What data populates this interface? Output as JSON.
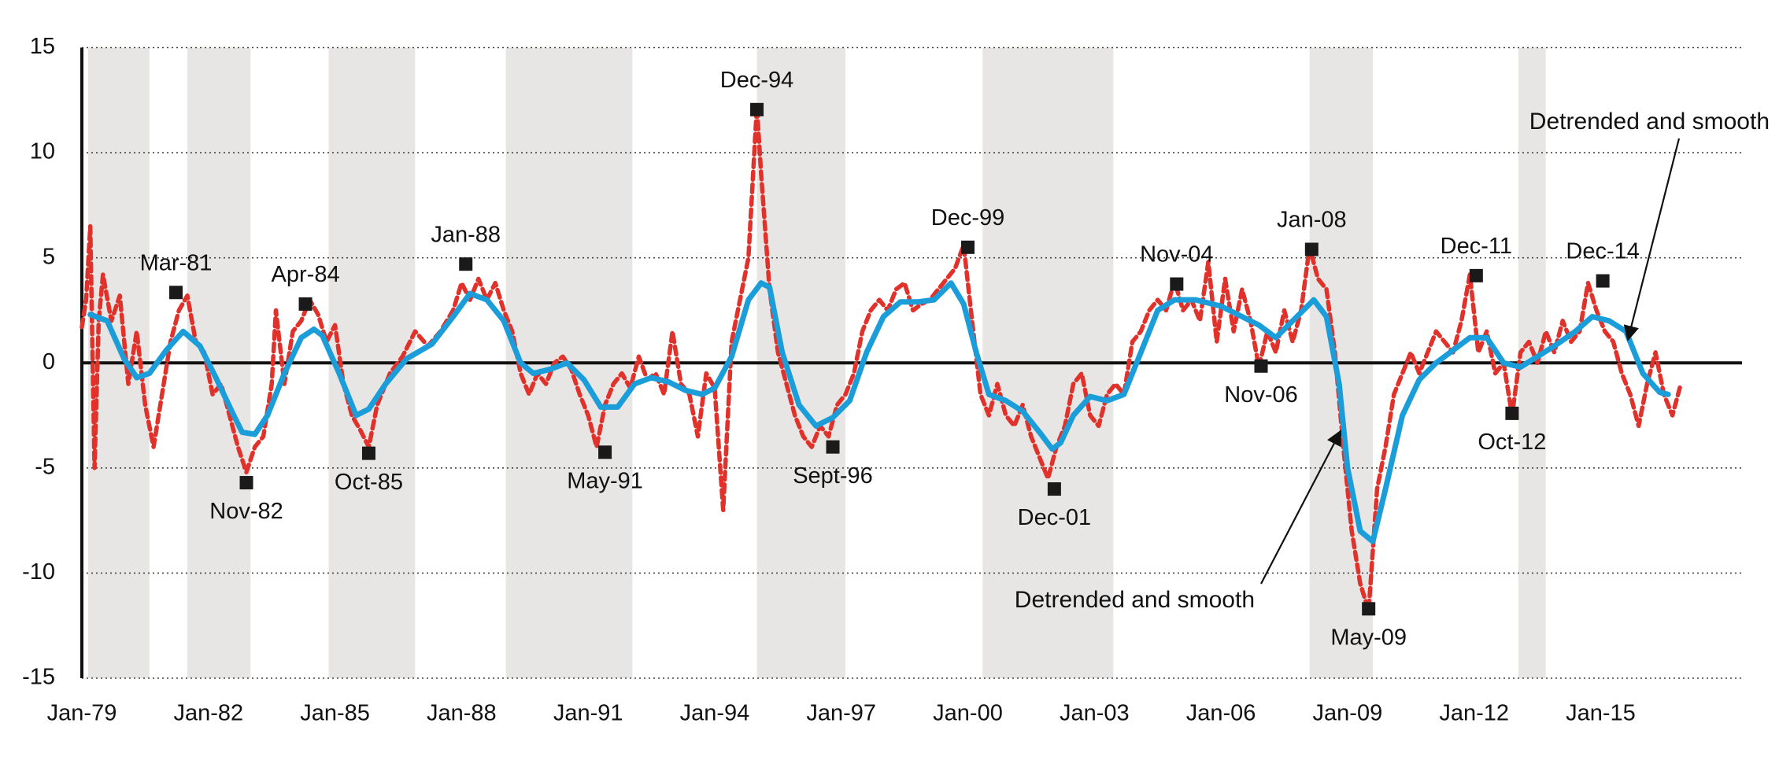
{
  "chart_data": {
    "type": "line",
    "xlim": [
      1979,
      2018.35
    ],
    "ylim": [
      -15,
      15
    ],
    "yticks": [
      15,
      10,
      5,
      0,
      -5,
      -10,
      -15
    ],
    "xticks": [
      {
        "value": 1979,
        "label": "Jan-79"
      },
      {
        "value": 1982,
        "label": "Jan-82"
      },
      {
        "value": 1985,
        "label": "Jan-85"
      },
      {
        "value": 1988,
        "label": "Jan-88"
      },
      {
        "value": 1991,
        "label": "Jan-91"
      },
      {
        "value": 1994,
        "label": "Jan-94"
      },
      {
        "value": 1997,
        "label": "Jan-97"
      },
      {
        "value": 2000,
        "label": "Jan-00"
      },
      {
        "value": 2003,
        "label": "Jan-03"
      },
      {
        "value": 2006,
        "label": "Jan-06"
      },
      {
        "value": 2009,
        "label": "Jan-09"
      },
      {
        "value": 2012,
        "label": "Jan-12"
      },
      {
        "value": 2015,
        "label": "Jan-15"
      }
    ],
    "grid": true,
    "shade_color": "#e8e6e4",
    "shaded_periods": [
      [
        1979.15,
        1980.6
      ],
      [
        1981.5,
        1983.0
      ],
      [
        1984.85,
        1986.9
      ],
      [
        1989.05,
        1992.05
      ],
      [
        1995.0,
        1997.1
      ],
      [
        2000.35,
        2003.45
      ],
      [
        2008.1,
        2009.6
      ],
      [
        2013.05,
        2013.7
      ]
    ],
    "series": [
      {
        "color": "#e0312b",
        "style": "dashed",
        "x": [
          1979.0,
          1979.1,
          1979.2,
          1979.3,
          1979.4,
          1979.5,
          1979.7,
          1979.9,
          1980.1,
          1980.3,
          1980.5,
          1980.7,
          1980.9,
          1981.1,
          1981.3,
          1981.5,
          1981.7,
          1981.9,
          1982.1,
          1982.3,
          1982.5,
          1982.7,
          1982.9,
          1983.1,
          1983.3,
          1983.5,
          1983.6,
          1983.8,
          1984.0,
          1984.2,
          1984.4,
          1984.6,
          1984.8,
          1985.0,
          1985.2,
          1985.4,
          1985.6,
          1985.8,
          1986.0,
          1986.3,
          1986.6,
          1986.9,
          1987.2,
          1987.5,
          1987.8,
          1988.0,
          1988.2,
          1988.4,
          1988.6,
          1988.8,
          1989.0,
          1989.2,
          1989.4,
          1989.6,
          1989.8,
          1990.0,
          1990.2,
          1990.4,
          1990.6,
          1990.8,
          1991.0,
          1991.2,
          1991.4,
          1991.6,
          1991.8,
          1992.0,
          1992.2,
          1992.4,
          1992.6,
          1992.8,
          1993.0,
          1993.2,
          1993.4,
          1993.6,
          1993.8,
          1994.0,
          1994.2,
          1994.4,
          1994.6,
          1994.8,
          1995.0,
          1995.1,
          1995.3,
          1995.5,
          1995.7,
          1995.9,
          1996.1,
          1996.3,
          1996.5,
          1996.7,
          1996.9,
          1997.1,
          1997.3,
          1997.5,
          1997.7,
          1997.9,
          1998.1,
          1998.3,
          1998.5,
          1998.7,
          1998.9,
          1999.1,
          1999.3,
          1999.5,
          1999.7,
          1999.9,
          2000.1,
          2000.3,
          2000.5,
          2000.7,
          2000.9,
          2001.1,
          2001.3,
          2001.5,
          2001.7,
          2001.9,
          2002.1,
          2002.3,
          2002.5,
          2002.7,
          2002.9,
          2003.1,
          2003.3,
          2003.5,
          2003.7,
          2003.9,
          2004.1,
          2004.3,
          2004.5,
          2004.7,
          2004.9,
          2005.1,
          2005.3,
          2005.5,
          2005.7,
          2005.9,
          2006.1,
          2006.3,
          2006.5,
          2006.7,
          2006.9,
          2007.1,
          2007.3,
          2007.5,
          2007.7,
          2007.9,
          2008.1,
          2008.3,
          2008.5,
          2008.7,
          2008.9,
          2009.1,
          2009.3,
          2009.5,
          2009.7,
          2009.9,
          2010.1,
          2010.3,
          2010.5,
          2010.7,
          2010.9,
          2011.1,
          2011.3,
          2011.5,
          2011.7,
          2011.9,
          2012.1,
          2012.3,
          2012.5,
          2012.7,
          2012.9,
          2013.1,
          2013.3,
          2013.5,
          2013.7,
          2013.9,
          2014.1,
          2014.3,
          2014.5,
          2014.7,
          2014.9,
          2015.1,
          2015.3,
          2015.5,
          2015.7,
          2015.9,
          2016.1,
          2016.3,
          2016.5,
          2016.7,
          2016.9
        ],
        "values": [
          1.7,
          3.0,
          6.5,
          -5.0,
          2.0,
          4.2,
          2.0,
          3.2,
          -1.0,
          1.5,
          -2.0,
          -4.0,
          -1.5,
          1.0,
          2.5,
          3.2,
          1.0,
          0.5,
          -1.5,
          -1.0,
          -2.5,
          -4.0,
          -5.2,
          -4.0,
          -3.5,
          -1.0,
          2.5,
          -1.0,
          1.5,
          2.0,
          3.0,
          2.3,
          1.0,
          1.8,
          -1.0,
          -2.5,
          -3.2,
          -4.0,
          -2.0,
          -0.5,
          0.3,
          1.5,
          0.8,
          1.5,
          2.5,
          3.8,
          3.0,
          4.0,
          3.0,
          3.8,
          2.5,
          1.5,
          -0.5,
          -1.5,
          -0.5,
          -1.0,
          0.0,
          0.3,
          -0.3,
          -1.5,
          -2.5,
          -4.0,
          -2.0,
          -1.0,
          -0.5,
          -1.2,
          0.3,
          -0.8,
          -0.5,
          -1.5,
          1.5,
          -1.0,
          -1.5,
          -3.5,
          -0.5,
          -1.2,
          -7.0,
          1.0,
          3.0,
          5.0,
          12.2,
          9.0,
          3.5,
          0.5,
          -1.0,
          -2.5,
          -3.5,
          -4.0,
          -3.0,
          -3.5,
          -2.0,
          -1.5,
          -0.5,
          1.5,
          2.5,
          3.0,
          2.5,
          3.5,
          3.8,
          2.5,
          2.8,
          3.0,
          3.5,
          4.0,
          4.5,
          5.6,
          2.0,
          -1.5,
          -2.5,
          -1.0,
          -2.5,
          -3.0,
          -2.0,
          -3.5,
          -4.5,
          -5.5,
          -4.0,
          -3.0,
          -1.0,
          -0.5,
          -2.5,
          -3.0,
          -1.5,
          -1.0,
          -1.5,
          1.0,
          1.5,
          2.5,
          3.0,
          2.5,
          3.9,
          2.5,
          3.0,
          2.0,
          4.8,
          1.0,
          4.0,
          1.5,
          3.5,
          2.0,
          -0.2,
          1.5,
          0.5,
          2.5,
          1.0,
          2.5,
          5.5,
          4.0,
          3.5,
          0.5,
          -4.0,
          -8.0,
          -10.5,
          -11.8,
          -6.0,
          -4.0,
          -1.5,
          -0.5,
          0.5,
          -0.5,
          0.5,
          1.5,
          1.0,
          0.5,
          2.0,
          4.2,
          0.5,
          1.5,
          -0.5,
          0.0,
          -2.5,
          0.5,
          1.0,
          0.0,
          1.5,
          0.5,
          2.0,
          1.0,
          1.5,
          3.8,
          2.5,
          1.5,
          1.0,
          -0.5,
          -1.5,
          -3.0,
          -1.0,
          0.5,
          -1.5,
          -2.5,
          -1.0
        ]
      },
      {
        "color": "#1b9dd9",
        "style": "solid",
        "x": [
          1979.2,
          1979.6,
          1980.0,
          1980.3,
          1980.6,
          1981.0,
          1981.4,
          1981.8,
          1982.2,
          1982.6,
          1982.8,
          1983.1,
          1983.4,
          1983.8,
          1984.2,
          1984.5,
          1984.7,
          1985.1,
          1985.5,
          1985.8,
          1986.2,
          1986.7,
          1987.3,
          1987.8,
          1988.2,
          1988.6,
          1989.0,
          1989.4,
          1989.7,
          1990.1,
          1990.5,
          1990.9,
          1991.3,
          1991.7,
          1992.1,
          1992.5,
          1992.9,
          1993.3,
          1993.7,
          1994.0,
          1994.4,
          1994.8,
          1995.1,
          1995.3,
          1995.6,
          1996.0,
          1996.4,
          1996.8,
          1997.2,
          1997.6,
          1998.0,
          1998.4,
          1998.8,
          1999.2,
          1999.6,
          1999.9,
          2000.2,
          2000.5,
          2000.9,
          2001.3,
          2001.7,
          2002.0,
          2002.2,
          2002.5,
          2002.9,
          2003.3,
          2003.7,
          2004.1,
          2004.5,
          2004.9,
          2005.4,
          2006.0,
          2006.5,
          2006.9,
          2007.3,
          2007.7,
          2008.2,
          2008.5,
          2008.8,
          2009.0,
          2009.3,
          2009.6,
          2009.9,
          2010.3,
          2010.7,
          2011.1,
          2011.5,
          2011.9,
          2012.3,
          2012.7,
          2013.1,
          2013.5,
          2013.9,
          2014.4,
          2014.8,
          2015.2,
          2015.6,
          2016.0,
          2016.4,
          2016.6
        ],
        "values": [
          2.3,
          2.0,
          0.2,
          -0.7,
          -0.5,
          0.6,
          1.5,
          0.8,
          -0.8,
          -2.5,
          -3.3,
          -3.4,
          -2.5,
          -0.5,
          1.2,
          1.6,
          1.3,
          -0.5,
          -2.5,
          -2.2,
          -1.0,
          0.2,
          0.9,
          2.2,
          3.3,
          3.0,
          2.0,
          0.0,
          -0.5,
          -0.3,
          0.0,
          -0.8,
          -2.1,
          -2.1,
          -1.0,
          -0.7,
          -0.9,
          -1.3,
          -1.5,
          -1.2,
          0.3,
          3.0,
          3.8,
          3.6,
          0.5,
          -2.0,
          -3.0,
          -2.6,
          -1.8,
          0.5,
          2.2,
          2.9,
          2.9,
          3.0,
          3.8,
          2.8,
          0.5,
          -1.5,
          -1.8,
          -2.3,
          -3.3,
          -4.1,
          -3.8,
          -2.5,
          -1.6,
          -1.8,
          -1.5,
          0.5,
          2.5,
          3.0,
          3.0,
          2.7,
          2.2,
          1.8,
          1.2,
          2.0,
          3.0,
          2.2,
          -1.0,
          -5.0,
          -8.0,
          -8.5,
          -6.0,
          -2.5,
          -0.8,
          0.0,
          0.6,
          1.2,
          1.2,
          0.0,
          -0.2,
          0.3,
          0.8,
          1.5,
          2.2,
          2.0,
          1.5,
          -0.5,
          -1.4,
          -1.5
        ]
      }
    ],
    "marker_color": "#1a1a1a",
    "turning_points": [
      {
        "label": "Mar-81",
        "x": 1981.23,
        "y": 3.35
      },
      {
        "label": "Nov-82",
        "x": 1982.9,
        "y": -5.7
      },
      {
        "label": "Apr-84",
        "x": 1984.3,
        "y": 2.8
      },
      {
        "label": "Oct-85",
        "x": 1985.8,
        "y": -4.3
      },
      {
        "label": "Jan-88",
        "x": 1988.1,
        "y": 4.7
      },
      {
        "label": "May-91",
        "x": 1991.4,
        "y": -4.25
      },
      {
        "label": "Dec-94",
        "x": 1995.0,
        "y": 12.05
      },
      {
        "label": "Sept-96",
        "x": 1996.8,
        "y": -4.0
      },
      {
        "label": "Dec-99",
        "x": 2000.0,
        "y": 5.5
      },
      {
        "label": "Dec-01",
        "x": 2002.05,
        "y": -6.0
      },
      {
        "label": "Nov-04",
        "x": 2004.95,
        "y": 3.75
      },
      {
        "label": "Nov-06",
        "x": 2006.95,
        "y": -0.15
      },
      {
        "label": "Jan-08",
        "x": 2008.15,
        "y": 5.4
      },
      {
        "label": "May-09",
        "x": 2009.5,
        "y": -11.7
      },
      {
        "label": "Dec-11",
        "x": 2012.05,
        "y": 4.15
      },
      {
        "label": "Oct-12",
        "x": 2012.9,
        "y": -2.4
      },
      {
        "label": "Dec-14",
        "x": 2015.05,
        "y": 3.9
      }
    ],
    "annotations": [
      {
        "text": "Detrended and smooth"
      },
      {
        "text": "Detrended and smooth"
      }
    ]
  }
}
